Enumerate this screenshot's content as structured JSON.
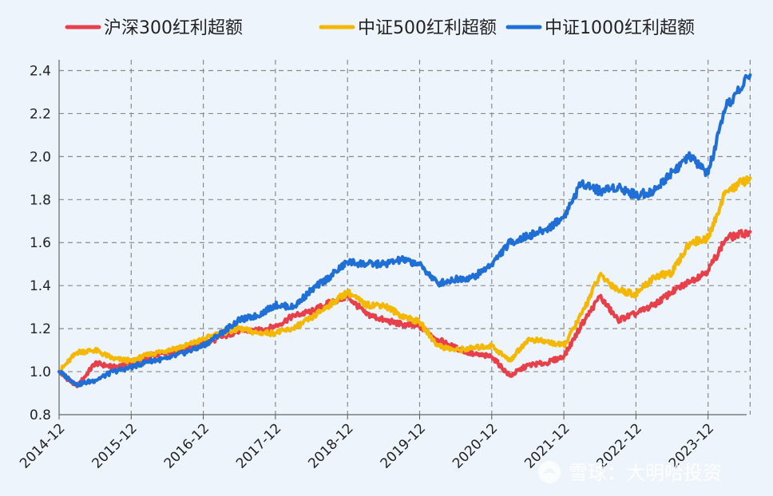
{
  "chart_data": {
    "type": "line",
    "title": "",
    "xlabel": "",
    "ylabel": "",
    "ylim": [
      0.8,
      2.45
    ],
    "yticks": [
      0.8,
      1.0,
      1.2,
      1.4,
      1.6,
      1.8,
      2.0,
      2.2,
      2.4
    ],
    "ytick_labels": [
      "0.8",
      "1.0",
      "1.2",
      "1.4",
      "1.6",
      "1.8",
      "2.0",
      "2.2",
      "2.4"
    ],
    "xticks": [
      "2014-12",
      "2015-12",
      "2016-12",
      "2017-12",
      "2018-12",
      "2019-12",
      "2020-12",
      "2021-12",
      "2022-12",
      "2023-12"
    ],
    "x_end_label": "2024-07",
    "grid": true,
    "legend_position": "top-center",
    "x": [
      "2014-12",
      "2015-03",
      "2015-06",
      "2015-09",
      "2015-12",
      "2016-03",
      "2016-06",
      "2016-09",
      "2016-12",
      "2017-03",
      "2017-06",
      "2017-09",
      "2017-12",
      "2018-03",
      "2018-06",
      "2018-09",
      "2018-12",
      "2019-03",
      "2019-06",
      "2019-09",
      "2019-12",
      "2020-03",
      "2020-06",
      "2020-09",
      "2020-12",
      "2021-03",
      "2021-06",
      "2021-09",
      "2021-12",
      "2022-03",
      "2022-06",
      "2022-09",
      "2022-12",
      "2023-03",
      "2023-06",
      "2023-09",
      "2023-12",
      "2024-03",
      "2024-07"
    ],
    "series": [
      {
        "name": "沪深300红利超额",
        "color": "#e8404a",
        "values": [
          1.0,
          0.93,
          1.04,
          1.02,
          1.04,
          1.07,
          1.09,
          1.11,
          1.13,
          1.16,
          1.19,
          1.19,
          1.21,
          1.26,
          1.28,
          1.32,
          1.35,
          1.27,
          1.24,
          1.22,
          1.21,
          1.15,
          1.11,
          1.08,
          1.07,
          0.98,
          1.03,
          1.04,
          1.07,
          1.22,
          1.35,
          1.24,
          1.27,
          1.31,
          1.37,
          1.42,
          1.47,
          1.62,
          1.65
        ]
      },
      {
        "name": "中证500红利超额",
        "color": "#f5b800",
        "values": [
          1.0,
          1.09,
          1.1,
          1.06,
          1.05,
          1.08,
          1.1,
          1.12,
          1.15,
          1.18,
          1.2,
          1.18,
          1.18,
          1.2,
          1.25,
          1.31,
          1.37,
          1.31,
          1.31,
          1.26,
          1.23,
          1.12,
          1.1,
          1.11,
          1.12,
          1.05,
          1.15,
          1.14,
          1.12,
          1.27,
          1.45,
          1.38,
          1.36,
          1.44,
          1.46,
          1.6,
          1.62,
          1.84,
          1.9
        ]
      },
      {
        "name": "中证1000红利超额",
        "color": "#1f6fd6",
        "values": [
          1.0,
          0.94,
          0.96,
          1.0,
          1.02,
          1.05,
          1.06,
          1.09,
          1.12,
          1.18,
          1.24,
          1.26,
          1.31,
          1.3,
          1.38,
          1.44,
          1.51,
          1.5,
          1.5,
          1.52,
          1.5,
          1.41,
          1.43,
          1.44,
          1.5,
          1.6,
          1.63,
          1.66,
          1.72,
          1.88,
          1.84,
          1.86,
          1.82,
          1.84,
          1.93,
          2.0,
          1.92,
          2.23,
          2.38
        ]
      }
    ]
  },
  "watermark": {
    "icon": "snowball-logo-icon",
    "text": "雪球：大明哈投资"
  }
}
